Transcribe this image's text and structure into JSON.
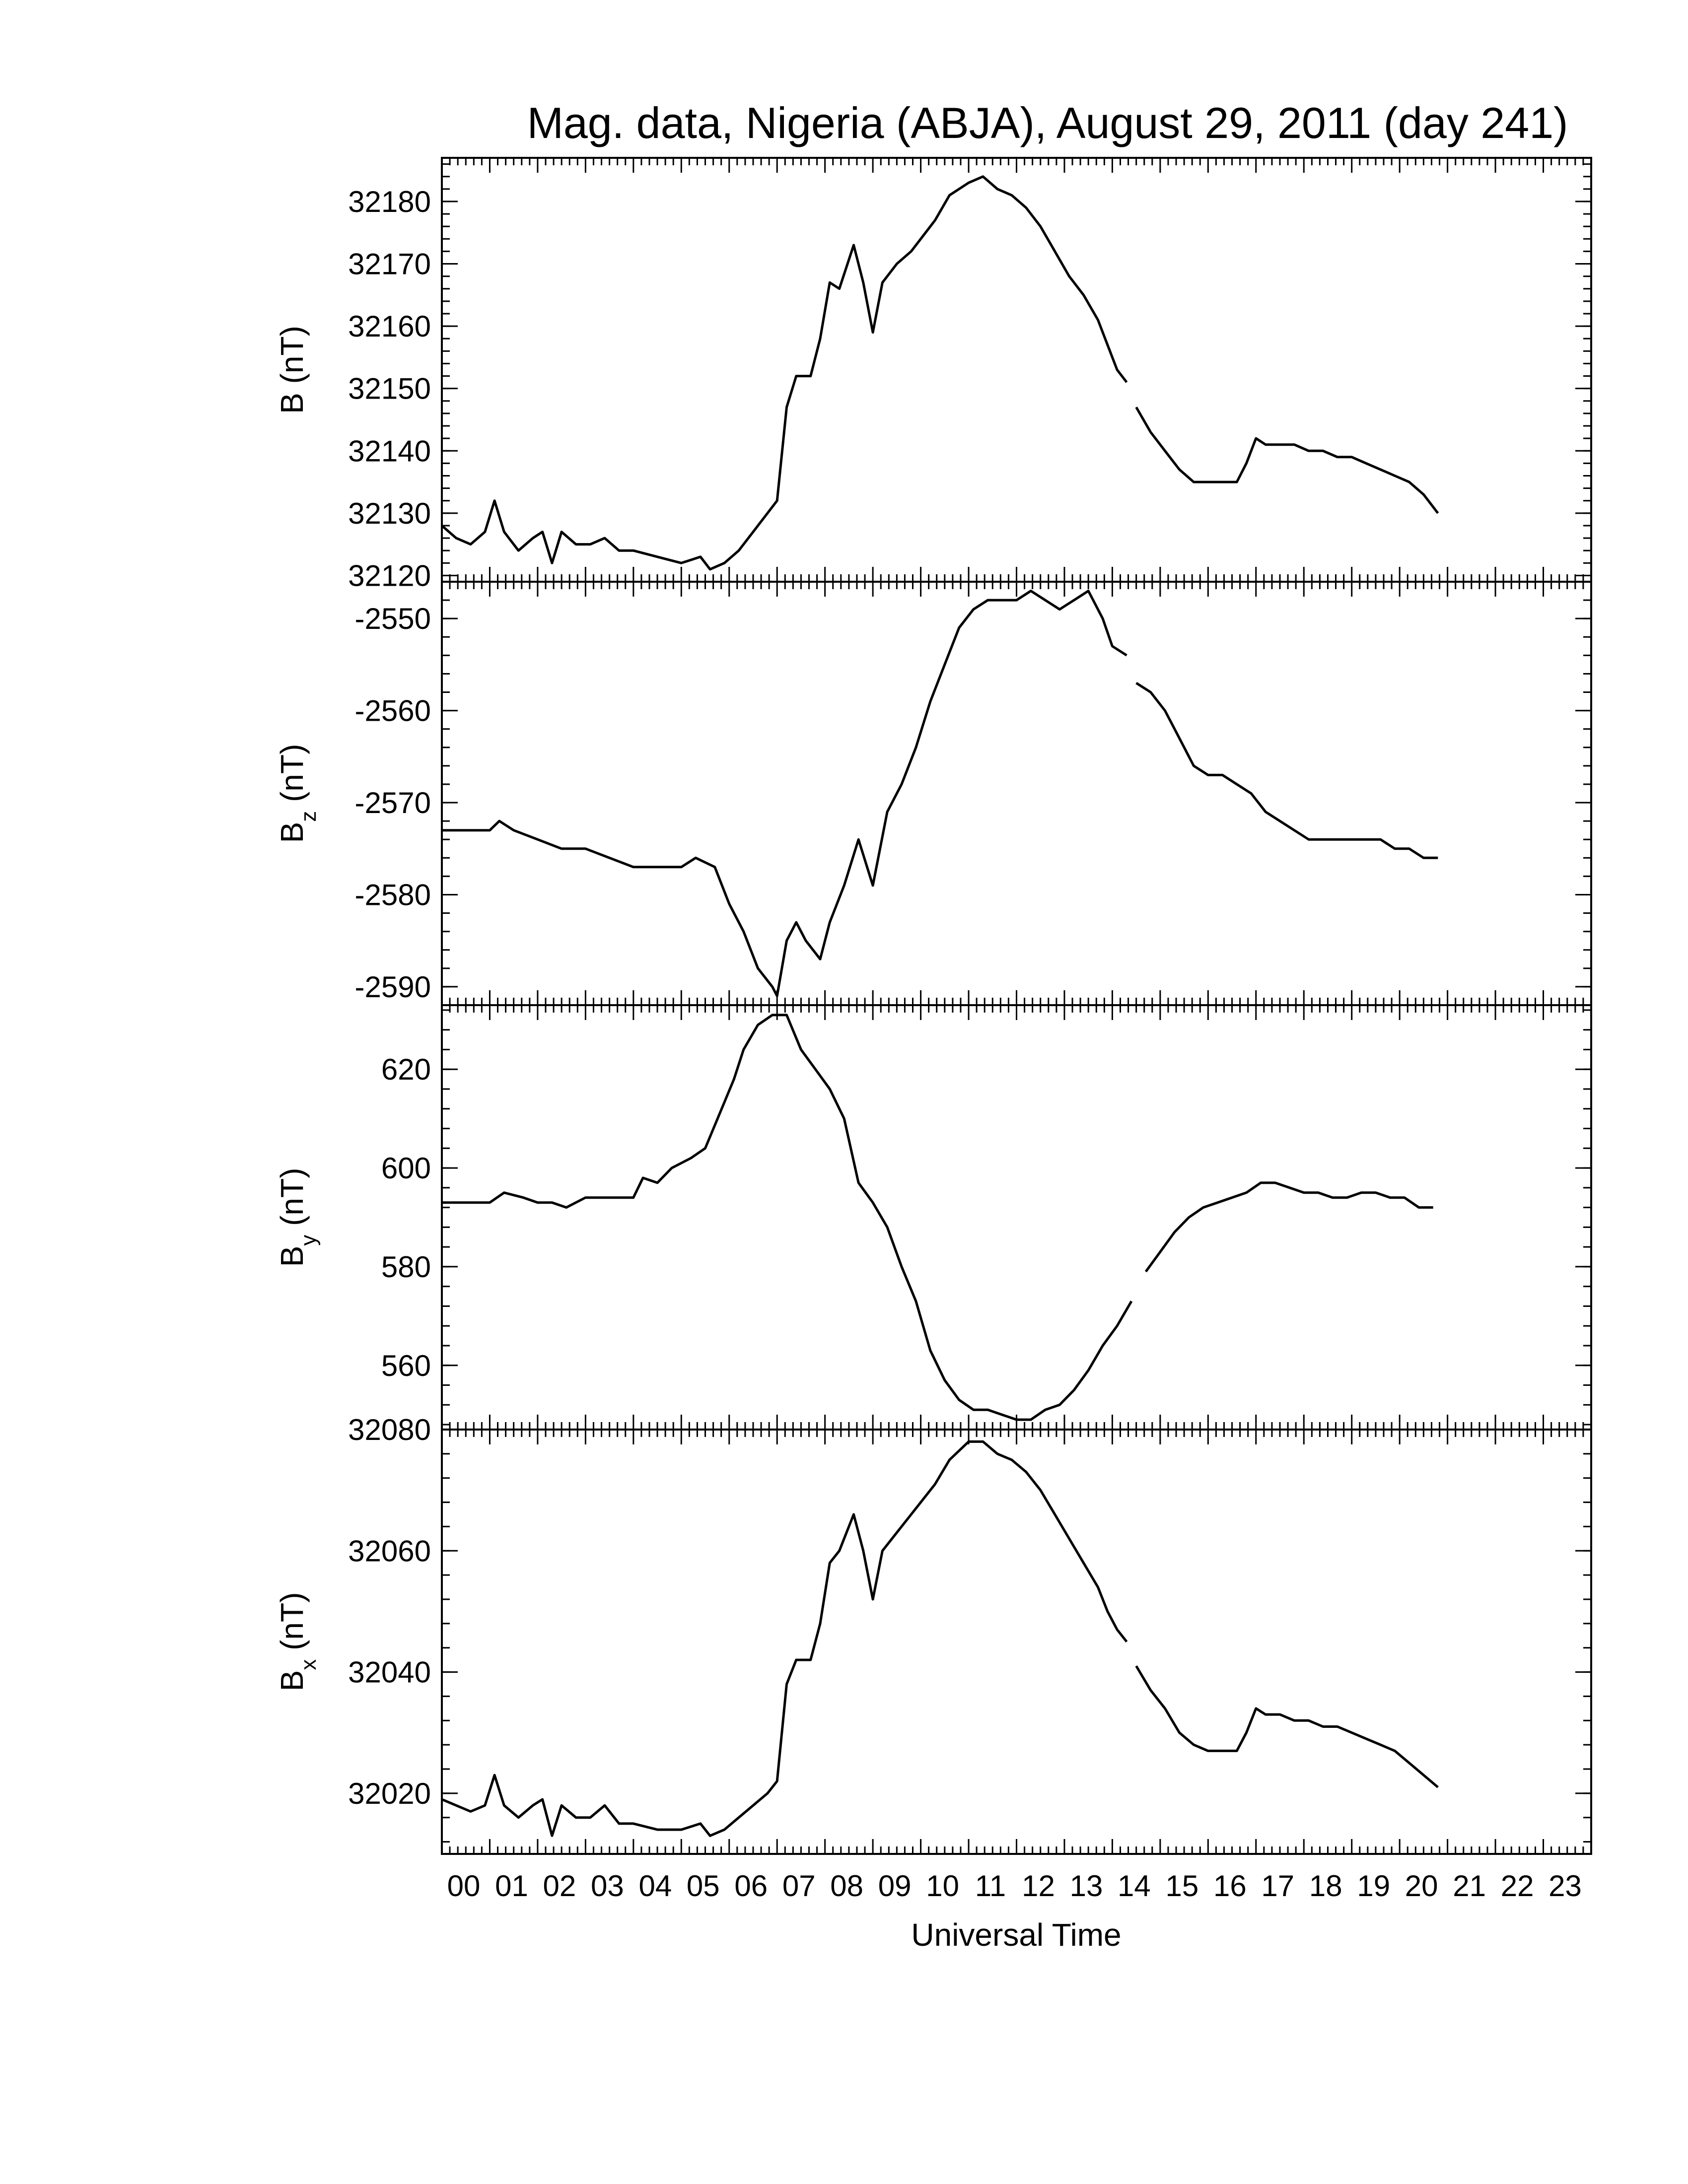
{
  "figure": {
    "title": "Mag. data, Nigeria (ABJA), August 29, 2011 (day 241)",
    "xlabel": "Universal Time",
    "x_tick_labels": [
      "00",
      "01",
      "02",
      "03",
      "04",
      "05",
      "06",
      "07",
      "08",
      "09",
      "10",
      "11",
      "12",
      "13",
      "14",
      "15",
      "16",
      "17",
      "18",
      "19",
      "20",
      "21",
      "22",
      "23"
    ],
    "line_color": "#000000"
  },
  "chart_data": [
    {
      "type": "line",
      "panel": "B",
      "ylabel": "B (nT)",
      "ylabel_main": "B (nT)",
      "ylabel_sub": "",
      "ylabel_rest": "",
      "xlim": [
        0,
        24
      ],
      "ylim": [
        32119,
        32187
      ],
      "y_ticks": [
        32120,
        32130,
        32140,
        32150,
        32160,
        32170,
        32180
      ],
      "segments": [
        [
          [
            0,
            32128
          ],
          [
            0.3,
            32126
          ],
          [
            0.6,
            32125
          ],
          [
            0.9,
            32127
          ],
          [
            1.1,
            32132
          ],
          [
            1.3,
            32127
          ],
          [
            1.6,
            32124
          ],
          [
            1.9,
            32126
          ],
          [
            2.1,
            32127
          ],
          [
            2.3,
            32122
          ],
          [
            2.5,
            32127
          ],
          [
            2.8,
            32125
          ],
          [
            3.1,
            32125
          ],
          [
            3.4,
            32126
          ],
          [
            3.7,
            32124
          ],
          [
            4.0,
            32124
          ],
          [
            4.5,
            32123
          ],
          [
            5.0,
            32122
          ],
          [
            5.4,
            32123
          ],
          [
            5.6,
            32121
          ],
          [
            5.9,
            32122
          ],
          [
            6.2,
            32124
          ],
          [
            6.5,
            32127
          ],
          [
            6.8,
            32130
          ],
          [
            7.0,
            32132
          ],
          [
            7.2,
            32147
          ],
          [
            7.4,
            32152
          ],
          [
            7.7,
            32152
          ],
          [
            7.9,
            32158
          ],
          [
            8.1,
            32167
          ],
          [
            8.3,
            32166
          ],
          [
            8.6,
            32173
          ],
          [
            8.8,
            32167
          ],
          [
            9.0,
            32159
          ],
          [
            9.2,
            32167
          ],
          [
            9.5,
            32170
          ],
          [
            9.8,
            32172
          ],
          [
            10.0,
            32174
          ],
          [
            10.3,
            32177
          ],
          [
            10.6,
            32181
          ],
          [
            11.0,
            32183
          ],
          [
            11.3,
            32184
          ],
          [
            11.6,
            32182
          ],
          [
            11.9,
            32181
          ],
          [
            12.2,
            32179
          ],
          [
            12.5,
            32176
          ],
          [
            12.8,
            32172
          ],
          [
            13.1,
            32168
          ],
          [
            13.4,
            32165
          ],
          [
            13.7,
            32161
          ],
          [
            13.9,
            32157
          ],
          [
            14.1,
            32153
          ],
          [
            14.3,
            32151
          ]
        ],
        [
          [
            14.5,
            32147
          ],
          [
            14.8,
            32143
          ],
          [
            15.1,
            32140
          ],
          [
            15.4,
            32137
          ],
          [
            15.7,
            32135
          ],
          [
            16.0,
            32135
          ],
          [
            16.3,
            32135
          ],
          [
            16.6,
            32135
          ],
          [
            16.8,
            32138
          ],
          [
            17.0,
            32142
          ],
          [
            17.2,
            32141
          ],
          [
            17.5,
            32141
          ],
          [
            17.8,
            32141
          ],
          [
            18.1,
            32140
          ],
          [
            18.4,
            32140
          ],
          [
            18.7,
            32139
          ],
          [
            19.0,
            32139
          ],
          [
            19.3,
            32138
          ],
          [
            19.6,
            32137
          ],
          [
            19.9,
            32136
          ],
          [
            20.2,
            32135
          ],
          [
            20.5,
            32133
          ],
          [
            20.8,
            32130
          ]
        ]
      ]
    },
    {
      "type": "line",
      "panel": "Bz",
      "ylabel": "Bz (nT)",
      "ylabel_main": "B",
      "ylabel_sub": "z",
      "ylabel_rest": " (nT)",
      "xlim": [
        0,
        24
      ],
      "ylim": [
        -2592,
        -2546
      ],
      "y_ticks": [
        -2590,
        -2580,
        -2570,
        -2560,
        -2550
      ],
      "segments": [
        [
          [
            0,
            -2573
          ],
          [
            0.5,
            -2573
          ],
          [
            1.0,
            -2573
          ],
          [
            1.2,
            -2572
          ],
          [
            1.5,
            -2573
          ],
          [
            2.0,
            -2574
          ],
          [
            2.5,
            -2575
          ],
          [
            3.0,
            -2575
          ],
          [
            3.5,
            -2576
          ],
          [
            4.0,
            -2577
          ],
          [
            4.5,
            -2577
          ],
          [
            5.0,
            -2577
          ],
          [
            5.3,
            -2576
          ],
          [
            5.7,
            -2577
          ],
          [
            6.0,
            -2581
          ],
          [
            6.3,
            -2584
          ],
          [
            6.6,
            -2588
          ],
          [
            6.9,
            -2590
          ],
          [
            7.0,
            -2591
          ],
          [
            7.2,
            -2585
          ],
          [
            7.4,
            -2583
          ],
          [
            7.6,
            -2585
          ],
          [
            7.9,
            -2587
          ],
          [
            8.1,
            -2583
          ],
          [
            8.4,
            -2579
          ],
          [
            8.7,
            -2574
          ],
          [
            9.0,
            -2579
          ],
          [
            9.3,
            -2571
          ],
          [
            9.6,
            -2568
          ],
          [
            9.9,
            -2564
          ],
          [
            10.2,
            -2559
          ],
          [
            10.5,
            -2555
          ],
          [
            10.8,
            -2551
          ],
          [
            11.1,
            -2549
          ],
          [
            11.4,
            -2548
          ],
          [
            11.7,
            -2548
          ],
          [
            12.0,
            -2548
          ],
          [
            12.3,
            -2547
          ],
          [
            12.6,
            -2548
          ],
          [
            12.9,
            -2549
          ],
          [
            13.2,
            -2548
          ],
          [
            13.5,
            -2547
          ],
          [
            13.8,
            -2550
          ],
          [
            14.0,
            -2553
          ],
          [
            14.3,
            -2554
          ]
        ],
        [
          [
            14.5,
            -2557
          ],
          [
            14.8,
            -2558
          ],
          [
            15.1,
            -2560
          ],
          [
            15.4,
            -2563
          ],
          [
            15.7,
            -2566
          ],
          [
            16.0,
            -2567
          ],
          [
            16.3,
            -2567
          ],
          [
            16.6,
            -2568
          ],
          [
            16.9,
            -2569
          ],
          [
            17.2,
            -2571
          ],
          [
            17.5,
            -2572
          ],
          [
            17.8,
            -2573
          ],
          [
            18.1,
            -2574
          ],
          [
            18.4,
            -2574
          ],
          [
            18.7,
            -2574
          ],
          [
            19.0,
            -2574
          ],
          [
            19.3,
            -2574
          ],
          [
            19.6,
            -2574
          ],
          [
            19.9,
            -2575
          ],
          [
            20.2,
            -2575
          ],
          [
            20.5,
            -2576
          ],
          [
            20.8,
            -2576
          ]
        ]
      ]
    },
    {
      "type": "line",
      "panel": "By",
      "ylabel": "By (nT)",
      "ylabel_main": "B",
      "ylabel_sub": "y",
      "ylabel_rest": " (nT)",
      "xlim": [
        0,
        24
      ],
      "ylim": [
        547,
        633
      ],
      "y_ticks": [
        560,
        580,
        600,
        620
      ],
      "segments": [
        [
          [
            0,
            593
          ],
          [
            0.5,
            593
          ],
          [
            1.0,
            593
          ],
          [
            1.3,
            595
          ],
          [
            1.7,
            594
          ],
          [
            2.0,
            593
          ],
          [
            2.3,
            593
          ],
          [
            2.6,
            592
          ],
          [
            3.0,
            594
          ],
          [
            3.4,
            594
          ],
          [
            3.8,
            594
          ],
          [
            4.0,
            594
          ],
          [
            4.2,
            598
          ],
          [
            4.5,
            597
          ],
          [
            4.8,
            600
          ],
          [
            5.2,
            602
          ],
          [
            5.5,
            604
          ],
          [
            5.8,
            611
          ],
          [
            6.1,
            618
          ],
          [
            6.3,
            624
          ],
          [
            6.6,
            629
          ],
          [
            6.9,
            631
          ],
          [
            7.2,
            631
          ],
          [
            7.5,
            624
          ],
          [
            7.8,
            620
          ],
          [
            8.1,
            616
          ],
          [
            8.4,
            610
          ],
          [
            8.7,
            597
          ],
          [
            9.0,
            593
          ],
          [
            9.3,
            588
          ],
          [
            9.6,
            580
          ],
          [
            9.9,
            573
          ],
          [
            10.2,
            563
          ],
          [
            10.5,
            557
          ],
          [
            10.8,
            553
          ],
          [
            11.1,
            551
          ],
          [
            11.4,
            551
          ],
          [
            11.7,
            550
          ],
          [
            12.0,
            549
          ],
          [
            12.3,
            549
          ],
          [
            12.6,
            551
          ],
          [
            12.9,
            552
          ],
          [
            13.2,
            555
          ],
          [
            13.5,
            559
          ],
          [
            13.8,
            564
          ],
          [
            14.1,
            568
          ],
          [
            14.4,
            573
          ]
        ],
        [
          [
            14.7,
            579
          ],
          [
            15.0,
            583
          ],
          [
            15.3,
            587
          ],
          [
            15.6,
            590
          ],
          [
            15.9,
            592
          ],
          [
            16.2,
            593
          ],
          [
            16.5,
            594
          ],
          [
            16.8,
            595
          ],
          [
            17.1,
            597
          ],
          [
            17.4,
            597
          ],
          [
            17.7,
            596
          ],
          [
            18.0,
            595
          ],
          [
            18.3,
            595
          ],
          [
            18.6,
            594
          ],
          [
            18.9,
            594
          ],
          [
            19.2,
            595
          ],
          [
            19.5,
            595
          ],
          [
            19.8,
            594
          ],
          [
            20.1,
            594
          ],
          [
            20.4,
            592
          ],
          [
            20.7,
            592
          ]
        ]
      ]
    },
    {
      "type": "line",
      "panel": "Bx",
      "ylabel": "Bx (nT)",
      "ylabel_main": "B",
      "ylabel_sub": "x",
      "ylabel_rest": " (nT)",
      "xlim": [
        0,
        24
      ],
      "ylim": [
        32010,
        32080
      ],
      "y_ticks": [
        32020,
        32040,
        32060,
        32080
      ],
      "segments": [
        [
          [
            0,
            32019
          ],
          [
            0.3,
            32018
          ],
          [
            0.6,
            32017
          ],
          [
            0.9,
            32018
          ],
          [
            1.1,
            32023
          ],
          [
            1.3,
            32018
          ],
          [
            1.6,
            32016
          ],
          [
            1.9,
            32018
          ],
          [
            2.1,
            32019
          ],
          [
            2.3,
            32013
          ],
          [
            2.5,
            32018
          ],
          [
            2.8,
            32016
          ],
          [
            3.1,
            32016
          ],
          [
            3.4,
            32018
          ],
          [
            3.7,
            32015
          ],
          [
            4.0,
            32015
          ],
          [
            4.5,
            32014
          ],
          [
            5.0,
            32014
          ],
          [
            5.4,
            32015
          ],
          [
            5.6,
            32013
          ],
          [
            5.9,
            32014
          ],
          [
            6.2,
            32016
          ],
          [
            6.5,
            32018
          ],
          [
            6.8,
            32020
          ],
          [
            7.0,
            32022
          ],
          [
            7.2,
            32038
          ],
          [
            7.4,
            32042
          ],
          [
            7.7,
            32042
          ],
          [
            7.9,
            32048
          ],
          [
            8.1,
            32058
          ],
          [
            8.3,
            32060
          ],
          [
            8.6,
            32066
          ],
          [
            8.8,
            32060
          ],
          [
            9.0,
            32052
          ],
          [
            9.2,
            32060
          ],
          [
            9.5,
            32063
          ],
          [
            9.8,
            32066
          ],
          [
            10.0,
            32068
          ],
          [
            10.3,
            32071
          ],
          [
            10.6,
            32075
          ],
          [
            11.0,
            32078
          ],
          [
            11.3,
            32078
          ],
          [
            11.6,
            32076
          ],
          [
            11.9,
            32075
          ],
          [
            12.2,
            32073
          ],
          [
            12.5,
            32070
          ],
          [
            12.8,
            32066
          ],
          [
            13.1,
            32062
          ],
          [
            13.4,
            32058
          ],
          [
            13.7,
            32054
          ],
          [
            13.9,
            32050
          ],
          [
            14.1,
            32047
          ],
          [
            14.3,
            32045
          ]
        ],
        [
          [
            14.5,
            32041
          ],
          [
            14.8,
            32037
          ],
          [
            15.1,
            32034
          ],
          [
            15.4,
            32030
          ],
          [
            15.7,
            32028
          ],
          [
            16.0,
            32027
          ],
          [
            16.3,
            32027
          ],
          [
            16.6,
            32027
          ],
          [
            16.8,
            32030
          ],
          [
            17.0,
            32034
          ],
          [
            17.2,
            32033
          ],
          [
            17.5,
            32033
          ],
          [
            17.8,
            32032
          ],
          [
            18.1,
            32032
          ],
          [
            18.4,
            32031
          ],
          [
            18.7,
            32031
          ],
          [
            19.0,
            32030
          ],
          [
            19.3,
            32029
          ],
          [
            19.6,
            32028
          ],
          [
            19.9,
            32027
          ],
          [
            20.2,
            32025
          ],
          [
            20.5,
            32023
          ],
          [
            20.8,
            32021
          ]
        ]
      ]
    }
  ]
}
